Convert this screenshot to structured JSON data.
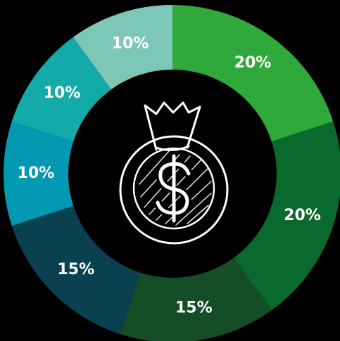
{
  "chart_data": {
    "type": "donut",
    "values": [
      20,
      20,
      15,
      15,
      10,
      10,
      10
    ],
    "value_labels": [
      "20%",
      "20%",
      "15%",
      "15%",
      "10%",
      "10%",
      "10%"
    ],
    "colors": [
      "#2ea93a",
      "#0a6a2d",
      "#154d27",
      "#0a4150",
      "#0399b2",
      "#13aba9",
      "#7dc7b7"
    ]
  }
}
